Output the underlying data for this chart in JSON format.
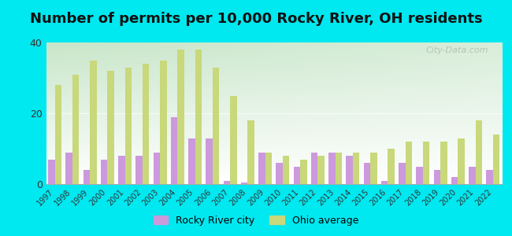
{
  "title": "Number of permits per 10,000 Rocky River, OH residents",
  "years": [
    1997,
    1998,
    1999,
    2000,
    2001,
    2002,
    2003,
    2004,
    2005,
    2006,
    2007,
    2008,
    2009,
    2010,
    2011,
    2012,
    2013,
    2014,
    2015,
    2016,
    2017,
    2018,
    2019,
    2020,
    2021,
    2022
  ],
  "rocky_river": [
    7,
    9,
    4,
    7,
    8,
    8,
    9,
    19,
    13,
    13,
    1,
    0.5,
    9,
    6,
    5,
    9,
    9,
    8,
    6,
    1,
    6,
    5,
    4,
    2,
    5,
    4
  ],
  "ohio_avg": [
    28,
    31,
    35,
    32,
    33,
    34,
    35,
    38,
    38,
    33,
    25,
    18,
    9,
    8,
    7,
    8,
    9,
    9,
    9,
    10,
    12,
    12,
    12,
    13,
    18,
    14
  ],
  "rocky_river_color": "#cc99dd",
  "ohio_avg_color": "#c8d87a",
  "background_outer": "#00e8f0",
  "ylim": [
    0,
    40
  ],
  "yticks": [
    0,
    20,
    40
  ],
  "bar_width": 0.38,
  "title_fontsize": 13,
  "legend_rocky_label": "Rocky River city",
  "legend_ohio_label": "Ohio average",
  "watermark_text": "City-Data.com",
  "grad_top_color": "#c8e6c9",
  "grad_bottom_color": "#f0fff0"
}
